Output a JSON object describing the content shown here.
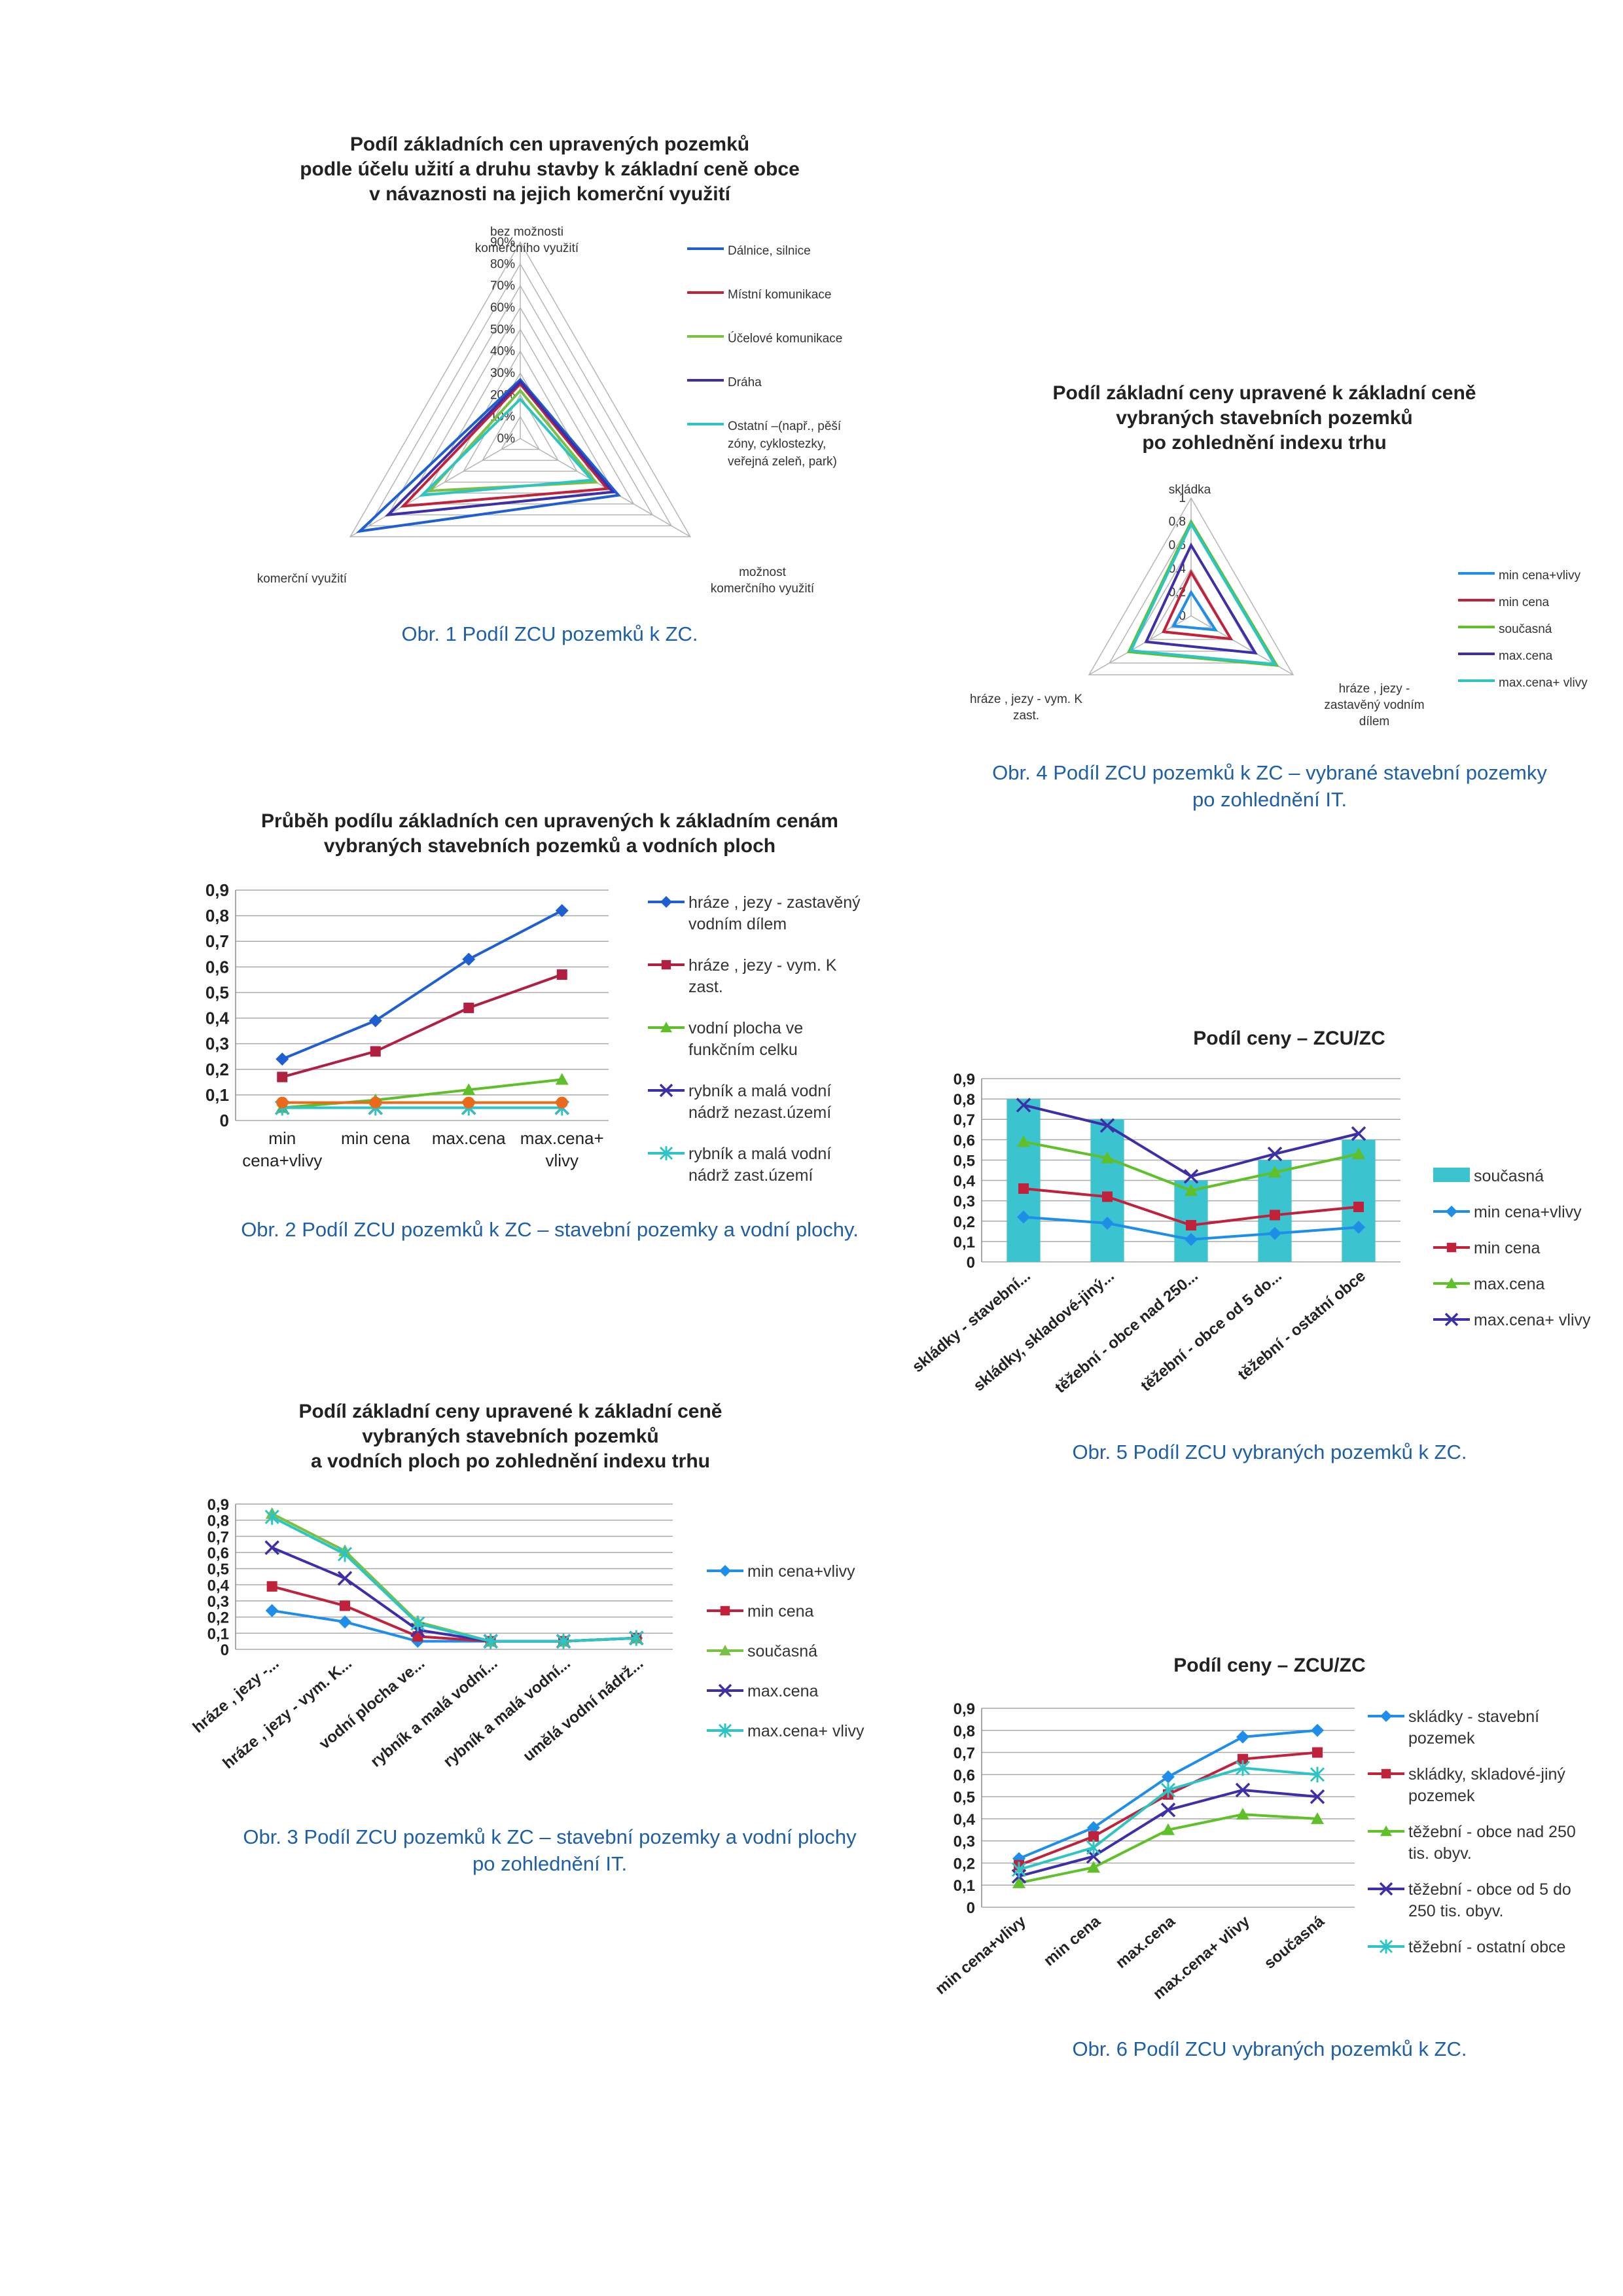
{
  "captions": {
    "fig1": "Obr. 1  Podíl ZCU pozemků k ZC.",
    "fig2": "Obr. 2  Podíl ZCU pozemků k ZC – stavební pozemky a vodní plochy.",
    "fig3a": "Obr. 3  Podíl ZCU pozemků k ZC – stavební pozemky a vodní plochy",
    "fig3b": "po zohlednění IT.",
    "fig4a": "Obr. 4  Podíl ZCU pozemků k ZC – vybrané stavební pozemky",
    "fig4b": "po zohlednění IT.",
    "fig5": "Obr. 5  Podíl ZCU vybraných pozemků k ZC.",
    "fig6": "Obr. 6  Podíl ZCU vybraných pozemků k ZC."
  },
  "chart_data": [
    {
      "id": "fig1",
      "type": "radar",
      "title": [
        "Podíl základních cen upravených pozemků",
        "podle účelu užití a druhu stavby k základní ceně obce",
        "v návaznosti na jejich komerční využití"
      ],
      "axes": [
        [
          "bez možnosti",
          "komerčního využití"
        ],
        [
          "možnost",
          "komerčního využití"
        ],
        [
          "komerční využití"
        ]
      ],
      "ticks": [
        "0%",
        "10%",
        "20%",
        "30%",
        "40%",
        "50%",
        "60%",
        "70%",
        "80%",
        "90%"
      ],
      "rmax": 90,
      "legend_position": "right",
      "series": [
        {
          "name": [
            "Dálnice, silnice"
          ],
          "color": "#1f5fd0",
          "values": [
            27,
            52,
            85
          ]
        },
        {
          "name": [
            "Místní komunikace"
          ],
          "color": "#c0223b",
          "values": [
            25,
            46,
            62
          ]
        },
        {
          "name": [
            "Účelové komunikace"
          ],
          "color": "#7ac043",
          "values": [
            22,
            40,
            48
          ]
        },
        {
          "name": [
            "Dráha"
          ],
          "color": "#3c2fa8",
          "values": [
            26,
            49,
            70
          ]
        },
        {
          "name": [
            "Ostatní –(např., pěší",
            "zóny, cyklostezky,",
            "veřejná zeleň, park)"
          ],
          "color": "#2ec4c4",
          "values": [
            18,
            38,
            52
          ]
        }
      ]
    },
    {
      "id": "fig2",
      "type": "line",
      "title": [
        "Průběh podílu základních cen upravených k základním cenám",
        "vybraných stavebních pozemků a vodních ploch"
      ],
      "categories": [
        [
          "min",
          "cena+vlivy"
        ],
        [
          "min cena"
        ],
        [
          "max.cena"
        ],
        [
          "max.cena+",
          "vlivy"
        ]
      ],
      "ylim": [
        0,
        0.9
      ],
      "yticks": [
        "0",
        "0,1",
        "0,2",
        "0,3",
        "0,4",
        "0,5",
        "0,6",
        "0,7",
        "0,8",
        "0,9"
      ],
      "legend_position": "right",
      "series": [
        {
          "name": [
            "hráze , jezy - zastavěný",
            "vodním dílem"
          ],
          "color": "#1f5fd0",
          "marker": "diamond",
          "values": [
            0.24,
            0.39,
            0.63,
            0.82
          ]
        },
        {
          "name": [
            "hráze , jezy - vym. K",
            "zast."
          ],
          "color": "#b02040",
          "marker": "square",
          "values": [
            0.17,
            0.27,
            0.44,
            0.57
          ]
        },
        {
          "name": [
            "vodní plocha ve",
            "funkčním celku"
          ],
          "color": "#5fbf2a",
          "marker": "triangle",
          "values": [
            0.05,
            0.08,
            0.12,
            0.16
          ]
        },
        {
          "name": [
            "rybník a malá vodní",
            "nádrž nezast.území"
          ],
          "color": "#3c2fa8",
          "marker": "x",
          "values": [
            0.05,
            0.05,
            0.05,
            0.05
          ]
        },
        {
          "name": [
            "rybník a malá vodní",
            "nádrž zast.území"
          ],
          "color": "#2ec4c4",
          "marker": "star",
          "values": [
            0.05,
            0.05,
            0.05,
            0.05
          ]
        },
        {
          "name": [],
          "color": "#e86a1a",
          "marker": "circle",
          "values": [
            0.07,
            0.07,
            0.07,
            0.07
          ]
        }
      ]
    },
    {
      "id": "fig3",
      "type": "line",
      "title": [
        "Podíl základní ceny upravené k základní ceně",
        "vybraných stavebních pozemků",
        "a vodních ploch po zohlednění indexu trhu"
      ],
      "categories": [
        "hráze , jezy -...",
        "hráze , jezy - vym. K...",
        "vodní plocha ve...",
        "rybník a malá vodní...",
        "rybník a malá vodní...",
        "umělá vodní nádrž..."
      ],
      "ylim": [
        0,
        0.9
      ],
      "yticks": [
        "0",
        "0,1",
        "0,2",
        "0,3",
        "0,4",
        "0,5",
        "0,6",
        "0,7",
        "0,8",
        "0,9"
      ],
      "legend_position": "right",
      "series": [
        {
          "name": [
            "min cena+vlivy"
          ],
          "color": "#1f8ee8",
          "marker": "diamond",
          "values": [
            0.24,
            0.17,
            0.05,
            0.05,
            0.05,
            0.07
          ]
        },
        {
          "name": [
            "min cena"
          ],
          "color": "#c0223b",
          "marker": "square",
          "values": [
            0.39,
            0.27,
            0.08,
            0.05,
            0.05,
            0.07
          ]
        },
        {
          "name": [
            "současná"
          ],
          "color": "#7ac043",
          "marker": "triangle",
          "values": [
            0.84,
            0.61,
            0.17,
            0.05,
            0.05,
            0.07
          ]
        },
        {
          "name": [
            "max.cena"
          ],
          "color": "#3c2fa8",
          "marker": "x",
          "values": [
            0.63,
            0.44,
            0.12,
            0.05,
            0.05,
            0.07
          ]
        },
        {
          "name": [
            "max.cena+ vlivy"
          ],
          "color": "#2ec4c4",
          "marker": "star",
          "values": [
            0.82,
            0.59,
            0.16,
            0.05,
            0.05,
            0.07
          ]
        }
      ]
    },
    {
      "id": "fig4",
      "type": "radar",
      "title": [
        "Podíl základní ceny upravené k základní ceně",
        "vybraných stavebních pozemků",
        "po zohlednění indexu trhu"
      ],
      "axes": [
        [
          "skládka"
        ],
        [
          "hráze , jezy -",
          "zastavěný vodním",
          "dílem"
        ],
        [
          "hráze , jezy - vym. K",
          "zast."
        ]
      ],
      "ticks": [
        "0",
        "0,2",
        "0,4",
        "0,6",
        "0,8",
        "1"
      ],
      "rmax": 1,
      "legend_position": "right",
      "series": [
        {
          "name": [
            "min cena+vlivy"
          ],
          "color": "#1f8ee8",
          "values": [
            0.2,
            0.24,
            0.17
          ]
        },
        {
          "name": [
            "min cena"
          ],
          "color": "#c0223b",
          "values": [
            0.37,
            0.39,
            0.27
          ]
        },
        {
          "name": [
            "současná"
          ],
          "color": "#5fc02a",
          "values": [
            0.8,
            0.84,
            0.61
          ]
        },
        {
          "name": [
            "max.cena"
          ],
          "color": "#3c2fa8",
          "values": [
            0.6,
            0.63,
            0.44
          ]
        },
        {
          "name": [
            "max.cena+ vlivy"
          ],
          "color": "#2ec4c4",
          "values": [
            0.78,
            0.82,
            0.59
          ]
        }
      ]
    },
    {
      "id": "fig5",
      "type": "bar",
      "title": [
        "Podíl ceny – ZCU/ZC"
      ],
      "categories": [
        "skládky - stavební...",
        "skládky, skladové-jiný...",
        "těžební - obce nad 250...",
        "těžební - obce od 5 do...",
        "těžební - ostatní obce"
      ],
      "ylim": [
        0,
        0.9
      ],
      "yticks": [
        "0",
        "0,1",
        "0,2",
        "0,3",
        "0,4",
        "0,5",
        "0,6",
        "0,7",
        "0,8",
        "0,9"
      ],
      "legend_position": "right",
      "bars": {
        "name": [
          "současná"
        ],
        "color": "#3cc3d0",
        "values": [
          0.8,
          0.7,
          0.4,
          0.5,
          0.6
        ]
      },
      "series": [
        {
          "name": [
            "min cena+vlivy"
          ],
          "color": "#1f8ee8",
          "marker": "diamond",
          "values": [
            0.22,
            0.19,
            0.11,
            0.14,
            0.17
          ]
        },
        {
          "name": [
            "min cena"
          ],
          "color": "#c0223b",
          "marker": "square",
          "values": [
            0.36,
            0.32,
            0.18,
            0.23,
            0.27
          ]
        },
        {
          "name": [
            "max.cena"
          ],
          "color": "#5fc02a",
          "marker": "triangle",
          "values": [
            0.59,
            0.51,
            0.35,
            0.44,
            0.53
          ]
        },
        {
          "name": [
            "max.cena+ vlivy"
          ],
          "color": "#3c2fa8",
          "marker": "x",
          "values": [
            0.77,
            0.67,
            0.42,
            0.53,
            0.63
          ]
        }
      ]
    },
    {
      "id": "fig6",
      "type": "line",
      "title": [
        "Podíl ceny – ZCU/ZC"
      ],
      "categories": [
        "min cena+vlivy",
        "min cena",
        "max.cena",
        "max.cena+ vlivy",
        "současná"
      ],
      "ylim": [
        0,
        0.9
      ],
      "yticks": [
        "0",
        "0,1",
        "0,2",
        "0,3",
        "0,4",
        "0,5",
        "0,6",
        "0,7",
        "0,8",
        "0,9"
      ],
      "legend_position": "right",
      "series": [
        {
          "name": [
            "skládky - stavební",
            "pozemek"
          ],
          "color": "#1f8ee8",
          "marker": "diamond",
          "values": [
            0.22,
            0.36,
            0.59,
            0.77,
            0.8
          ]
        },
        {
          "name": [
            "skládky, skladové-jiný",
            "pozemek"
          ],
          "color": "#c0223b",
          "marker": "square",
          "values": [
            0.19,
            0.32,
            0.51,
            0.67,
            0.7
          ]
        },
        {
          "name": [
            "těžební - obce nad 250",
            "tis. obyv."
          ],
          "color": "#5fc02a",
          "marker": "triangle",
          "values": [
            0.11,
            0.18,
            0.35,
            0.42,
            0.4
          ]
        },
        {
          "name": [
            "těžební - obce od 5 do",
            "250 tis. obyv."
          ],
          "color": "#3c2fa8",
          "marker": "x",
          "values": [
            0.14,
            0.23,
            0.44,
            0.53,
            0.5
          ]
        },
        {
          "name": [
            "těžební - ostatní obce"
          ],
          "color": "#2ec4c4",
          "marker": "star",
          "values": [
            0.17,
            0.27,
            0.53,
            0.63,
            0.6
          ]
        }
      ]
    }
  ]
}
